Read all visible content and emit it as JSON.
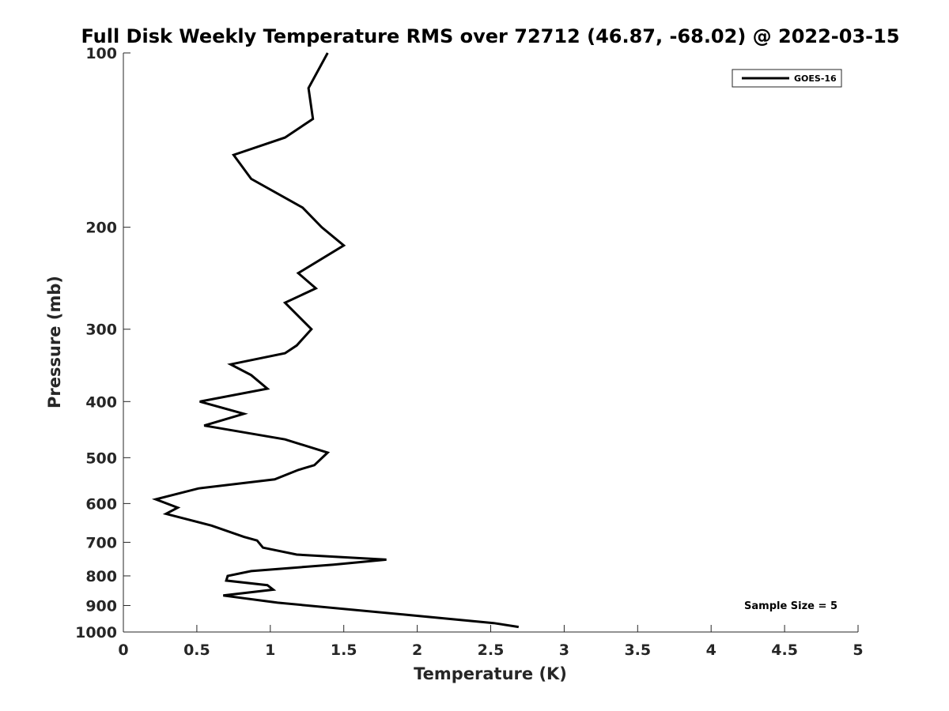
{
  "chart_data": {
    "type": "line",
    "title": "Full Disk Weekly Temperature RMS over 72712 (46.87, -68.02) @ 2022-03-15",
    "xlabel": "Temperature (K)",
    "ylabel": "Pressure (mb)",
    "xlim": [
      0,
      5
    ],
    "ylim": [
      1000,
      100
    ],
    "y_scale": "log",
    "y_reversed": true,
    "grid": false,
    "legend_position": "top-right",
    "x_ticks": [
      "0",
      "0.5",
      "1",
      "1.5",
      "2",
      "2.5",
      "3",
      "3.5",
      "4",
      "4.5",
      "5"
    ],
    "y_ticks": [
      "100",
      "200",
      "300",
      "400",
      "500",
      "600",
      "700",
      "800",
      "900",
      "1000"
    ],
    "annotation": "Sample Size = 5",
    "series": [
      {
        "name": "GOES-16",
        "color": "#000000",
        "x": [
          1.39,
          1.26,
          1.29,
          1.1,
          0.75,
          0.87,
          1.22,
          1.35,
          1.5,
          1.19,
          1.31,
          1.1,
          1.28,
          1.18,
          1.1,
          0.73,
          0.87,
          0.98,
          0.52,
          0.82,
          0.55,
          1.1,
          1.39,
          1.3,
          1.19,
          1.03,
          0.51,
          0.22,
          0.37,
          0.29,
          0.6,
          0.82,
          0.91,
          0.95,
          1.18,
          1.79,
          1.43,
          0.87,
          0.71,
          0.7,
          0.98,
          1.02,
          0.68,
          1.05,
          1.95,
          2.52,
          2.69
        ],
        "y": [
          100,
          115,
          130,
          140,
          150,
          165,
          185,
          200,
          215,
          240,
          255,
          270,
          300,
          320,
          330,
          345,
          360,
          380,
          400,
          420,
          440,
          465,
          490,
          515,
          525,
          545,
          565,
          590,
          610,
          625,
          655,
          685,
          695,
          715,
          735,
          750,
          765,
          785,
          800,
          815,
          830,
          845,
          865,
          890,
          935,
          965,
          980
        ]
      }
    ]
  }
}
